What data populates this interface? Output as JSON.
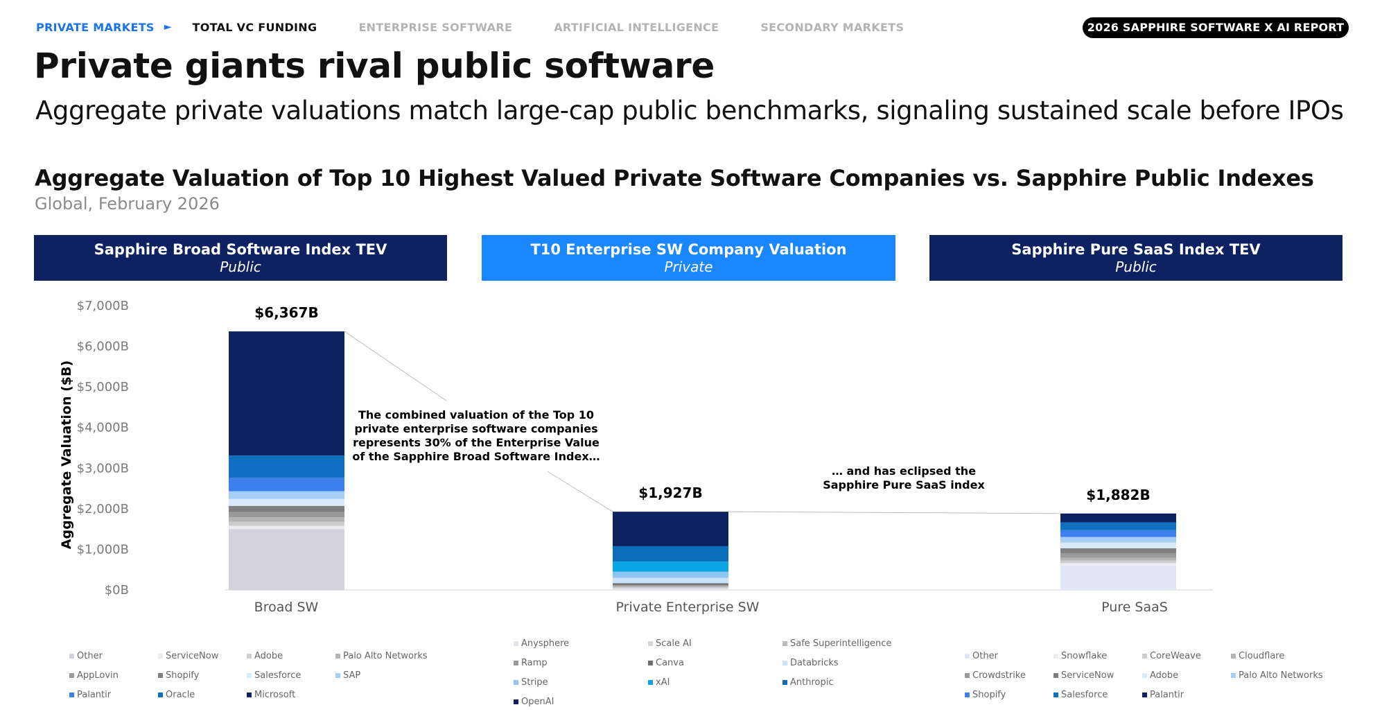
{
  "nav": {
    "items": [
      {
        "label": "PRIVATE MARKETS",
        "state": "active"
      },
      {
        "label": "TOTAL VC FUNDING",
        "state": "current"
      },
      {
        "label": "ENTERPRISE SOFTWARE",
        "state": "inactive"
      },
      {
        "label": "ARTIFICIAL INTELLIGENCE",
        "state": "inactive"
      },
      {
        "label": "SECONDARY MARKETS",
        "state": "inactive"
      }
    ],
    "arrow": "►",
    "badge": "2026 SAPPHIRE SOFTWARE X AI REPORT"
  },
  "page": {
    "title": "Private giants rival public software",
    "subtitle": "Aggregate private valuations match large-cap public benchmarks, signaling sustained scale before IPOs"
  },
  "chart_headers": [
    {
      "title": "Sapphire Broad Software Index TEV",
      "tag": "Public"
    },
    {
      "title": "T10 Enterprise SW Company Valuation",
      "tag": "Private"
    },
    {
      "title": "Sapphire Pure SaaS Index TEV",
      "tag": "Public"
    }
  ],
  "chart_data": {
    "type": "bar",
    "stacked": true,
    "title": "Aggregate Valuation of Top 10 Highest Valued Private Software Companies vs. Sapphire Public Indexes",
    "subtitle": "Global, February 2026",
    "ylabel": "Aggregate Valuation ($B)",
    "ylim": [
      0,
      7000
    ],
    "yticks": [
      0,
      1000,
      2000,
      3000,
      4000,
      5000,
      6000,
      7000
    ],
    "ytick_labels": [
      "$0B",
      "$1,000B",
      "$2,000B",
      "$3,000B",
      "$4,000B",
      "$5,000B",
      "$6,000B",
      "$7,000B"
    ],
    "categories": [
      "Broad SW",
      "Private Enterprise SW",
      "Pure SaaS"
    ],
    "totals": [
      6367,
      1927,
      1882
    ],
    "total_labels": [
      "$6,367B",
      "$1,927B",
      "$1,882B"
    ],
    "stacks": [
      {
        "category": "Broad SW",
        "segments": [
          {
            "name": "Other",
            "value": 1500,
            "color": "#d3d2dd"
          },
          {
            "name": "ServiceNow",
            "value": 80,
            "color": "#ececf1"
          },
          {
            "name": "Adobe",
            "value": 100,
            "color": "#cdcdcd"
          },
          {
            "name": "Palo Alto Networks",
            "value": 110,
            "color": "#b4b4b4"
          },
          {
            "name": "AppLovin",
            "value": 130,
            "color": "#9a9a9a"
          },
          {
            "name": "Shopify",
            "value": 150,
            "color": "#7f7f7f"
          },
          {
            "name": "Salesforce",
            "value": 170,
            "color": "#d9ebfb"
          },
          {
            "name": "SAP",
            "value": 190,
            "color": "#a6cff5"
          },
          {
            "name": "Palantir",
            "value": 330,
            "color": "#3d7fec"
          },
          {
            "name": "Oracle",
            "value": 550,
            "color": "#0f6fc0"
          },
          {
            "name": "Microsoft",
            "value": 3057,
            "color": "#0e2160"
          }
        ]
      },
      {
        "category": "Private Enterprise SW",
        "segments": [
          {
            "name": "Anysphere",
            "value": 28,
            "color": "#e4e4ef"
          },
          {
            "name": "Scale AI",
            "value": 30,
            "color": "#d6d6d6"
          },
          {
            "name": "Safe Superintelligence",
            "value": 32,
            "color": "#bdbdbd"
          },
          {
            "name": "Ramp",
            "value": 32,
            "color": "#9b9b9b"
          },
          {
            "name": "Canva",
            "value": 42,
            "color": "#6d6d6d"
          },
          {
            "name": "Databricks",
            "value": 134,
            "color": "#cbe4fa"
          },
          {
            "name": "Stripe",
            "value": 150,
            "color": "#8fc4f3"
          },
          {
            "name": "xAI",
            "value": 249,
            "color": "#0aa6e6"
          },
          {
            "name": "Anthropic",
            "value": 380,
            "color": "#0a6ebd"
          },
          {
            "name": "OpenAI",
            "value": 850,
            "color": "#0e2160"
          }
        ]
      },
      {
        "category": "Pure SaaS",
        "segments": [
          {
            "name": "Other",
            "value": 600,
            "color": "#e0e6f3"
          },
          {
            "name": "Snowflake",
            "value": 60,
            "color": "#ececf1"
          },
          {
            "name": "CoreWeave",
            "value": 65,
            "color": "#cdcdcd"
          },
          {
            "name": "Cloudflare",
            "value": 70,
            "color": "#b4b4b4"
          },
          {
            "name": "Crowdstrike",
            "value": 110,
            "color": "#9a9a9a"
          },
          {
            "name": "ServiceNow",
            "value": 120,
            "color": "#7f7f7f"
          },
          {
            "name": "Adobe",
            "value": 140,
            "color": "#d9ebfb"
          },
          {
            "name": "Palo Alto Networks",
            "value": 140,
            "color": "#a6cff5"
          },
          {
            "name": "Shopify",
            "value": 170,
            "color": "#3d7fec"
          },
          {
            "name": "Salesforce",
            "value": 190,
            "color": "#0f6fc0"
          },
          {
            "name": "Palantir",
            "value": 217,
            "color": "#0e2160"
          }
        ]
      }
    ],
    "annotations": [
      {
        "lines": [
          "The combined valuation of the Top 10",
          "private enterprise software companies",
          "represents 30% of the Enterprise Value",
          "of the Sapphire Broad Software Index…"
        ]
      },
      {
        "lines": [
          "… and has eclipsed the",
          "Sapphire Pure SaaS index"
        ]
      }
    ],
    "legends": [
      {
        "items": [
          "Other",
          "ServiceNow",
          "Adobe",
          "Palo Alto Networks",
          "AppLovin",
          "Shopify",
          "Salesforce",
          "SAP",
          "Palantir",
          "Oracle",
          "Microsoft"
        ]
      },
      {
        "items": [
          "Anysphere",
          "Scale AI",
          "Safe Superintelligence",
          "Ramp",
          "Canva",
          "Databricks",
          "Stripe",
          "xAI",
          "Anthropic",
          "OpenAI"
        ]
      },
      {
        "items": [
          "Other",
          "Snowflake",
          "CoreWeave",
          "Cloudflare",
          "Crowdstrike",
          "ServiceNow",
          "Adobe",
          "Palo Alto Networks",
          "Shopify",
          "Salesforce",
          "Palantir"
        ]
      }
    ]
  }
}
